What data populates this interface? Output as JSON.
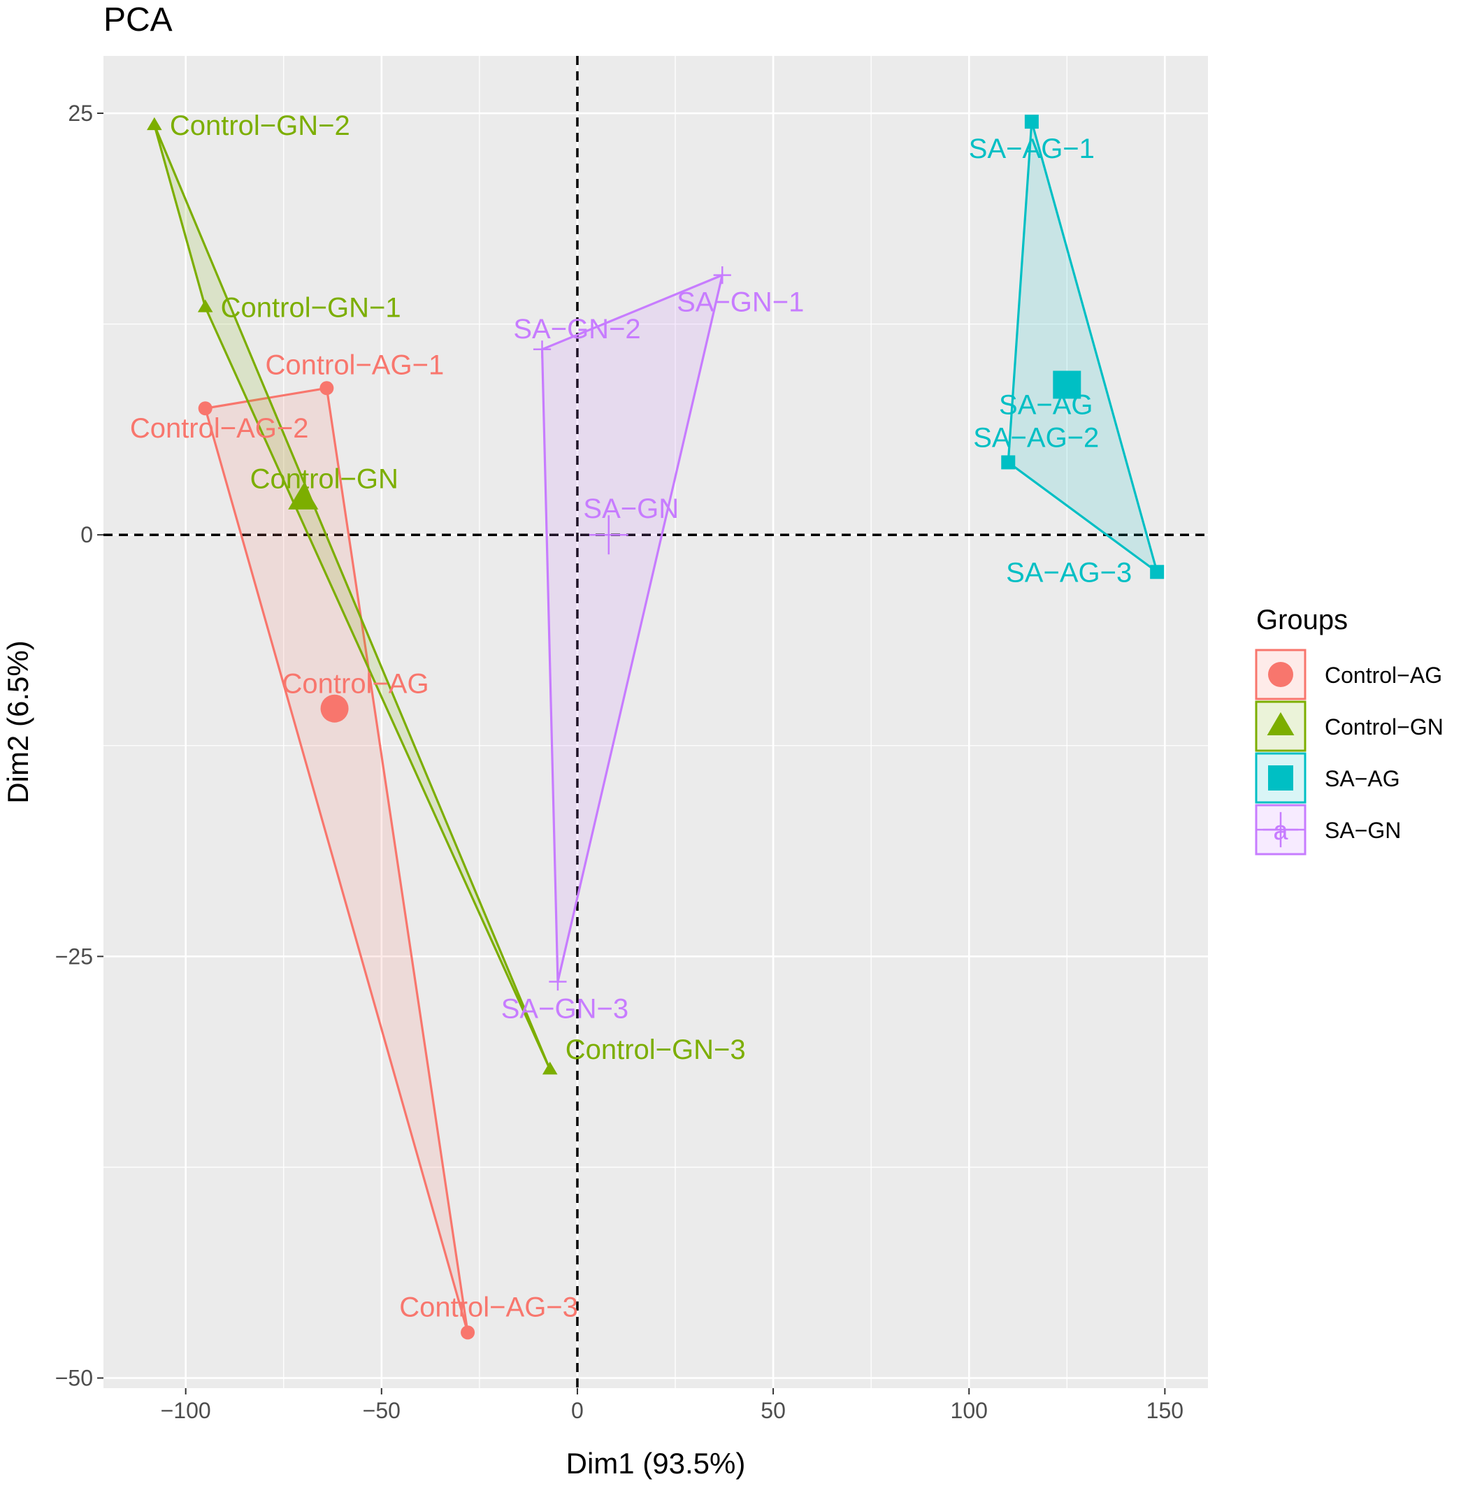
{
  "chart_data": {
    "type": "scatter",
    "title": "PCA",
    "xlabel": "Dim1 (93.5%)",
    "ylabel": "Dim2 (6.5%)",
    "xlim": [
      -121,
      161
    ],
    "ylim": [
      -50.6,
      28.4
    ],
    "x_ticks": [
      -100,
      -50,
      0,
      50,
      100,
      150
    ],
    "y_ticks": [
      -50,
      -25,
      0,
      25
    ],
    "x_tick_labels": [
      "−100",
      "−50",
      "0",
      "50",
      "100",
      "150"
    ],
    "y_tick_labels": [
      "−50",
      "−25",
      "0",
      "25"
    ],
    "reference_lines": {
      "x": 0,
      "y": 0,
      "style": "dashed"
    },
    "legend": {
      "title": "Groups",
      "position": "right"
    },
    "series": [
      {
        "name": "Control−AG",
        "color": "#F8766D",
        "shape": "circle",
        "points": [
          {
            "label": "Control−AG−1",
            "x": -64,
            "y": 8.7
          },
          {
            "label": "Control−AG−2",
            "x": -95,
            "y": 7.5
          },
          {
            "label": "Control−AG−3",
            "x": -28,
            "y": -47.3
          }
        ],
        "centroid": {
          "label": "Control−AG",
          "x": -62,
          "y": -10.3
        }
      },
      {
        "name": "Control−GN",
        "color": "#7CAE00",
        "shape": "triangle",
        "points": [
          {
            "label": "Control−GN−1",
            "x": -95,
            "y": 13.5
          },
          {
            "label": "Control−GN−2",
            "x": -108,
            "y": 24.3
          },
          {
            "label": "Control−GN−3",
            "x": -7,
            "y": -31.7
          }
        ],
        "centroid": {
          "label": "Control−GN",
          "x": -70,
          "y": 2.1
        }
      },
      {
        "name": "SA−AG",
        "color": "#00BFC4",
        "shape": "square",
        "points": [
          {
            "label": "SA−AG−1",
            "x": 116,
            "y": 24.5
          },
          {
            "label": "SA−AG−2",
            "x": 110,
            "y": 4.3
          },
          {
            "label": "SA−AG−3",
            "x": 148,
            "y": -2.2
          }
        ],
        "centroid": {
          "label": "SA−AG",
          "x": 125,
          "y": 8.9
        }
      },
      {
        "name": "SA−GN",
        "color": "#C77CFF",
        "shape": "cross",
        "points": [
          {
            "label": "SA−GN−1",
            "x": 37,
            "y": 15.4
          },
          {
            "label": "SA−GN−2",
            "x": -9,
            "y": 11.0
          },
          {
            "label": "SA−GN−3",
            "x": -5,
            "y": -26.5
          }
        ],
        "centroid": {
          "label": "SA−GN",
          "x": 8,
          "y": 0
        }
      }
    ],
    "legend_glyph_letter": "a"
  }
}
